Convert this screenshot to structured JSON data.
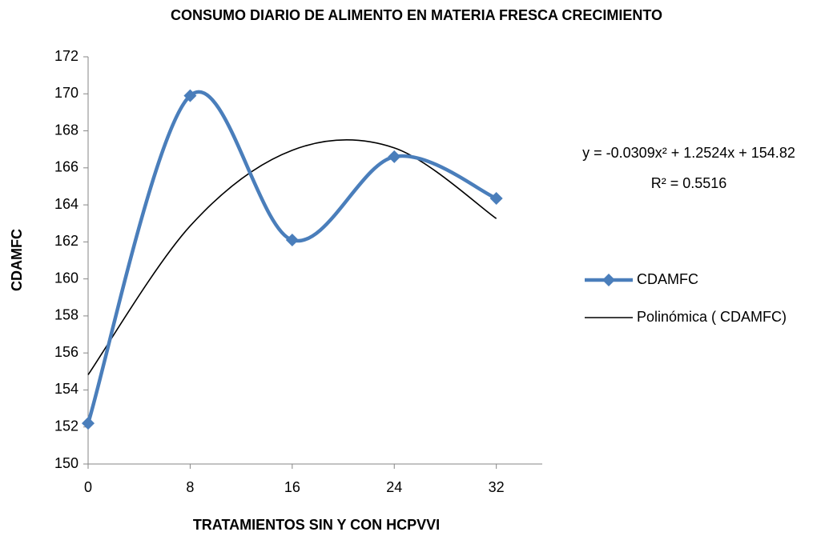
{
  "chart_data": {
    "type": "line",
    "title": "CONSUMO DIARIO DE ALIMENTO EN MATERIA FRESCA CRECIMIENTO",
    "xlabel": "TRATAMIENTOS SIN Y CON  HCPVVI",
    "ylabel": "CDAMFC",
    "x": [
      0,
      8,
      16,
      24,
      32
    ],
    "series": [
      {
        "name": "CDAMFC",
        "color": "#4a7ebb",
        "values": [
          152.2,
          169.9,
          162.1,
          166.6,
          164.35
        ],
        "marker": "diamond"
      },
      {
        "name": "Polinómica ( CDAMFC)",
        "color": "#000000",
        "values": [
          154.82,
          162.86,
          166.95,
          167.08,
          163.26
        ]
      }
    ],
    "annotations": [
      "y = -0.0309x² + 1.2524x + 154.82",
      "R² = 0.5516"
    ],
    "xlim": [
      0,
      35.6
    ],
    "ylim": [
      150,
      172
    ],
    "xticks": [
      0,
      8,
      16,
      24,
      32
    ],
    "yticks": [
      150,
      152,
      154,
      156,
      158,
      160,
      162,
      164,
      166,
      168,
      170,
      172
    ],
    "smooth": true,
    "grid": false
  }
}
